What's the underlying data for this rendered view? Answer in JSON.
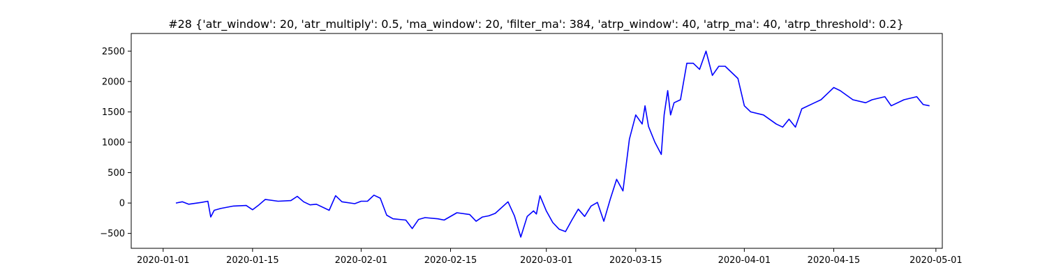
{
  "chart_data": {
    "type": "line",
    "title": "#28 {'atr_window': 20, 'atr_multiply': 0.5, 'ma_window': 20, 'filter_ma': 384, 'atrp_window': 40, 'atrp_ma': 40, 'atrp_threshold': 0.2}",
    "xlabel": "",
    "ylabel": "",
    "xlim": [
      "2019-12-27",
      "2020-05-02"
    ],
    "ylim": [
      -745,
      2790
    ],
    "grid": false,
    "x_ticks": [
      "2020-01-01",
      "2020-01-15",
      "2020-02-01",
      "2020-02-15",
      "2020-03-01",
      "2020-03-15",
      "2020-04-01",
      "2020-04-15",
      "2020-05-01"
    ],
    "y_ticks": [
      -500,
      0,
      500,
      1000,
      1500,
      2000,
      2500
    ],
    "series": [
      {
        "color": "#0000ff",
        "x": [
          "2020-01-03",
          "2020-01-04",
          "2020-01-05",
          "2020-01-07",
          "2020-01-08",
          "2020-01-08",
          "2020-01-09",
          "2020-01-10",
          "2020-01-12",
          "2020-01-14",
          "2020-01-15",
          "2020-01-16",
          "2020-01-17",
          "2020-01-19",
          "2020-01-21",
          "2020-01-22",
          "2020-01-23",
          "2020-01-24",
          "2020-01-25",
          "2020-01-27",
          "2020-01-28",
          "2020-01-29",
          "2020-01-31",
          "2020-02-01",
          "2020-02-02",
          "2020-02-03",
          "2020-02-04",
          "2020-02-05",
          "2020-02-06",
          "2020-02-08",
          "2020-02-09",
          "2020-02-10",
          "2020-02-11",
          "2020-02-13",
          "2020-02-14",
          "2020-02-16",
          "2020-02-18",
          "2020-02-19",
          "2020-02-20",
          "2020-02-21",
          "2020-02-22",
          "2020-02-24",
          "2020-02-25",
          "2020-02-26",
          "2020-02-27",
          "2020-02-28",
          "2020-02-28",
          "2020-02-29",
          "2020-03-01",
          "2020-03-02",
          "2020-03-03",
          "2020-03-04",
          "2020-03-05",
          "2020-03-06",
          "2020-03-07",
          "2020-03-08",
          "2020-03-09",
          "2020-03-10",
          "2020-03-11",
          "2020-03-12",
          "2020-03-13",
          "2020-03-14",
          "2020-03-15",
          "2020-03-16",
          "2020-03-16",
          "2020-03-17",
          "2020-03-18",
          "2020-03-19",
          "2020-03-19",
          "2020-03-20",
          "2020-03-20",
          "2020-03-21",
          "2020-03-22",
          "2020-03-23",
          "2020-03-24",
          "2020-03-25",
          "2020-03-26",
          "2020-03-27",
          "2020-03-28",
          "2020-03-29",
          "2020-03-31",
          "2020-04-01",
          "2020-04-02",
          "2020-04-04",
          "2020-04-06",
          "2020-04-07",
          "2020-04-08",
          "2020-04-09",
          "2020-04-10",
          "2020-04-12",
          "2020-04-13",
          "2020-04-14",
          "2020-04-15",
          "2020-04-16",
          "2020-04-18",
          "2020-04-20",
          "2020-04-21",
          "2020-04-23",
          "2020-04-24",
          "2020-04-26",
          "2020-04-28",
          "2020-04-29",
          "2020-04-30"
        ],
        "y": [
          0,
          20,
          -20,
          10,
          30,
          -230,
          -120,
          -90,
          -50,
          -40,
          -110,
          -30,
          60,
          30,
          40,
          110,
          20,
          -30,
          -20,
          -120,
          120,
          20,
          -10,
          30,
          30,
          130,
          80,
          -200,
          -260,
          -280,
          -420,
          -270,
          -240,
          -260,
          -280,
          -160,
          -190,
          -300,
          -230,
          -210,
          -170,
          20,
          -210,
          -560,
          -220,
          -130,
          -180,
          120,
          -130,
          -320,
          -430,
          -470,
          -280,
          -100,
          -220,
          -50,
          10,
          -300,
          60,
          390,
          200,
          1050,
          1450,
          1300,
          1600,
          1260,
          1000,
          800,
          1450,
          1850,
          1450,
          1650,
          1700,
          2300,
          2300,
          2200,
          2500,
          2100,
          2250,
          2250,
          2050,
          1600,
          1500,
          1450,
          1300,
          1250,
          1380,
          1250,
          1550,
          1650,
          1700,
          1800,
          1900,
          1850,
          1700,
          1650,
          1700,
          1750,
          1600,
          1700,
          1750,
          1620,
          1600
        ]
      }
    ]
  }
}
